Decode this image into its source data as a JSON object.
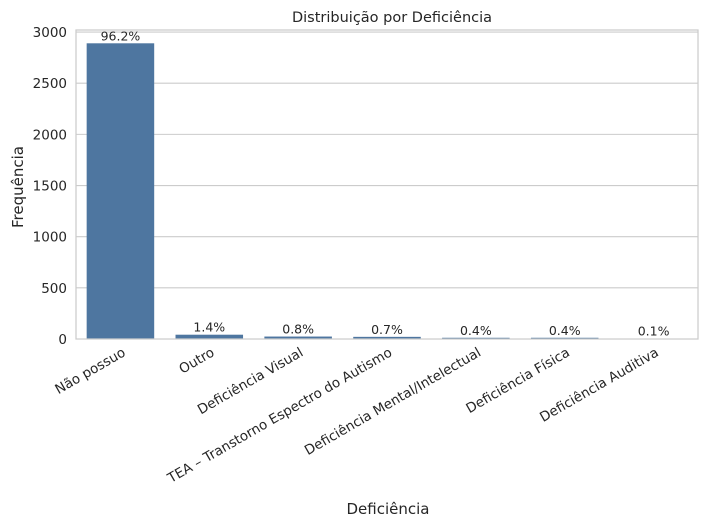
{
  "chart_data": {
    "type": "bar",
    "title": "Distribuição por Deficiência",
    "xlabel": "Deficiência",
    "ylabel": "Frequência",
    "ylim": [
      0,
      3020
    ],
    "yticks": [
      0,
      500,
      1000,
      1500,
      2000,
      2500,
      3000
    ],
    "grid": true,
    "categories": [
      "Não possuo",
      "Outro",
      "Deficiência Visual",
      "TEA – Transtorno Espectro do Autismo",
      "Deficiência Mental/Intelectual",
      "Deficiência Física",
      "Deficiência Auditiva"
    ],
    "values": [
      2890,
      42,
      24,
      21,
      12,
      12,
      3
    ],
    "labels": [
      "96.2%",
      "1.4%",
      "0.8%",
      "0.7%",
      "0.4%",
      "0.4%",
      "0.1%"
    ],
    "bar_color": "#4e76a0",
    "frame_color": "#cccccc",
    "grid_color": "#cccccc"
  }
}
